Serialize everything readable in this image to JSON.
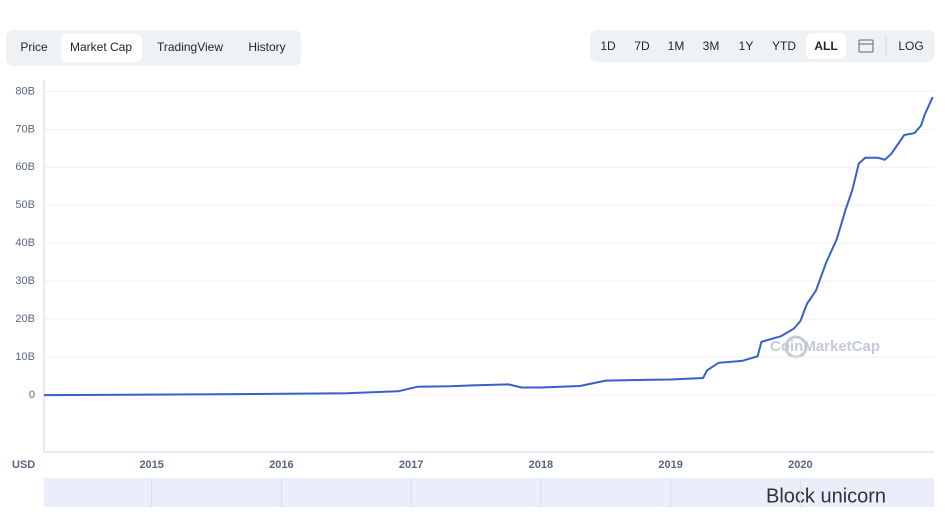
{
  "toolbar": {
    "tabs": [
      "Price",
      "Market Cap",
      "TradingView",
      "History"
    ],
    "ranges": [
      "1D",
      "7D",
      "1M",
      "3M",
      "1Y",
      "YTD",
      "ALL"
    ],
    "scale_button": "LOG"
  },
  "chart_data": {
    "type": "line",
    "unit_label": "USD",
    "watermark": "CoinMarketCap",
    "x": [
      2014.17,
      2015.5,
      2016.5,
      2016.9,
      2017.05,
      2017.3,
      2017.5,
      2017.75,
      2017.85,
      2018.0,
      2018.3,
      2018.5,
      2018.8,
      2019.0,
      2019.25,
      2019.28,
      2019.37,
      2019.55,
      2019.67,
      2019.7,
      2019.85,
      2019.95,
      2020.0,
      2020.05,
      2020.12,
      2020.2,
      2020.28,
      2020.35,
      2020.4,
      2020.45,
      2020.5,
      2020.6,
      2020.65,
      2020.7,
      2020.75,
      2020.8,
      2020.88,
      2020.93,
      2020.96,
      2021.02
    ],
    "values": [
      0,
      0.2,
      0.5,
      1,
      2.2,
      2.3,
      2.6,
      2.8,
      2.0,
      2.0,
      2.4,
      3.8,
      4.0,
      4.1,
      4.5,
      6.5,
      8.5,
      9.0,
      10.2,
      14,
      15.5,
      17.5,
      19.5,
      24,
      27.5,
      35,
      41,
      49,
      54,
      61,
      62.5,
      62.5,
      62,
      63.5,
      66,
      68.5,
      69,
      71,
      74,
      78.5
    ],
    "color": "#3861c8",
    "xlim": [
      2014.17,
      2021.03
    ],
    "xticks": [
      2015,
      2016,
      2017,
      2018,
      2019,
      2020
    ],
    "ylim": [
      -15,
      83
    ],
    "yticks": [
      0,
      {
        "value": 10,
        "label": "10B"
      },
      {
        "value": 20,
        "label": "20B"
      },
      {
        "value": 30,
        "label": "30B"
      },
      {
        "value": 40,
        "label": "40B"
      },
      {
        "value": 50,
        "label": "50B"
      },
      {
        "value": 60,
        "label": "60B"
      },
      {
        "value": 70,
        "label": "70B"
      },
      {
        "value": 80,
        "label": "80B"
      }
    ],
    "grid": true
  },
  "overlay": {
    "watermark": "Block unicorn"
  }
}
